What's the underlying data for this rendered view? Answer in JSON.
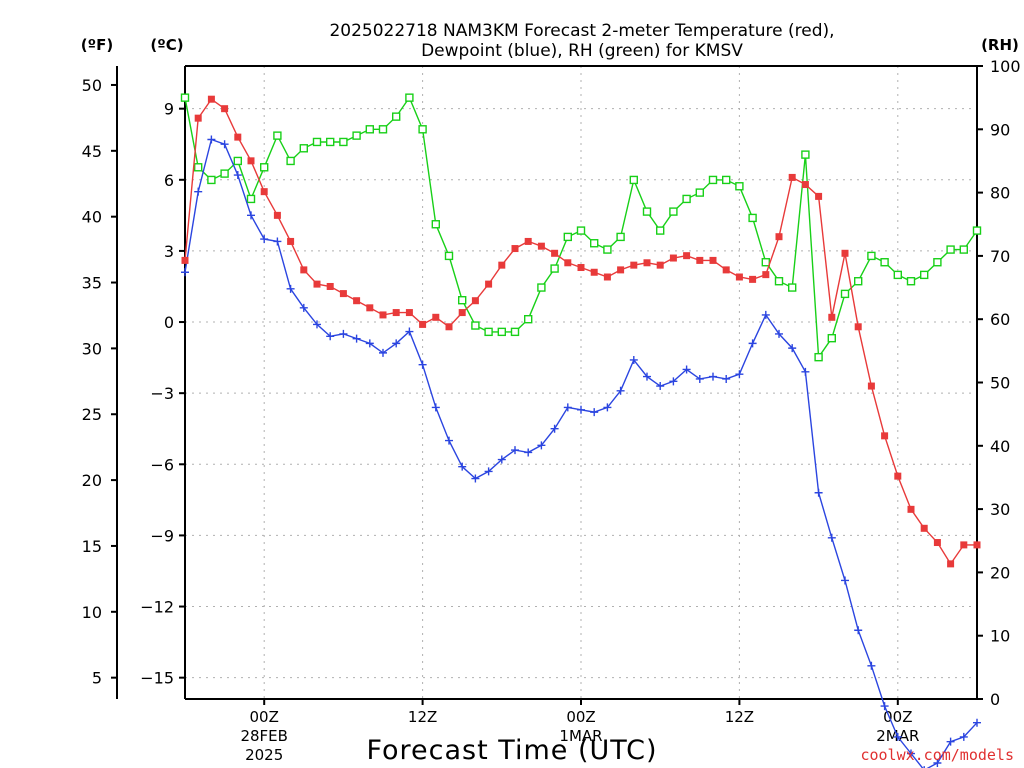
{
  "title": {
    "line1": "2025022718 NAM3KM Forecast 2-meter Temperature (red),",
    "line2": "Dewpoint (blue), RH (green) for KMSV"
  },
  "units": {
    "f": "(ºF)",
    "c": "(ºC)",
    "rh": "(RH)"
  },
  "credit": "coolwx.com/models",
  "colors": {
    "temperature": "#e83a3a",
    "dewpoint": "#2b45e0",
    "rh": "#18d018",
    "grid": "#b0b0b0"
  },
  "chart_data": {
    "type": "line",
    "title": "2025022718 NAM3KM Forecast 2-meter Temperature (red), Dewpoint (blue), RH (green) for KMSV",
    "xlabel": "Forecast Time (UTC)",
    "x_ticks": [
      {
        "h": 6,
        "l1": "00Z",
        "l2": "28FEB",
        "l3": "2025"
      },
      {
        "h": 18,
        "l1": "12Z",
        "l2": "",
        "l3": ""
      },
      {
        "h": 30,
        "l1": "00Z",
        "l2": "1MAR",
        "l3": ""
      },
      {
        "h": 42,
        "l1": "12Z",
        "l2": "",
        "l3": ""
      },
      {
        "h": 54,
        "l1": "00Z",
        "l2": "2MAR",
        "l3": ""
      }
    ],
    "x_hours": [
      0,
      1,
      2,
      3,
      4,
      5,
      6,
      7,
      8,
      9,
      10,
      11,
      12,
      13,
      14,
      15,
      16,
      17,
      18,
      19,
      20,
      21,
      22,
      23,
      24,
      25,
      26,
      27,
      28,
      29,
      30,
      31,
      32,
      33,
      34,
      35,
      36,
      37,
      38,
      39,
      40,
      41,
      42,
      43,
      44,
      45,
      46,
      47,
      48,
      49,
      50,
      51,
      52,
      53,
      54,
      55,
      56,
      57,
      58,
      59,
      60
    ],
    "xlim": [
      0,
      60
    ],
    "y_left_c": {
      "ticks": [
        9,
        6,
        3,
        0,
        -3,
        -6,
        -9,
        -12,
        -15
      ],
      "tick_labels": [
        "9",
        "6",
        "3",
        "0",
        "−3",
        "−6",
        "−9",
        "−12",
        "−15"
      ],
      "ylim": [
        -15.9,
        10.8
      ]
    },
    "y_left_f": {
      "ticks": [
        50,
        45,
        40,
        35,
        30,
        25,
        20,
        15,
        10,
        5
      ],
      "tick_labels": [
        "50",
        "45",
        "40",
        "35",
        "30",
        "25",
        "20",
        "15",
        "10",
        "5"
      ]
    },
    "y_right_rh": {
      "ticks": [
        100,
        90,
        80,
        70,
        60,
        50,
        40,
        30,
        20,
        10,
        0
      ],
      "tick_labels": [
        "100",
        "90",
        "80",
        "70",
        "60",
        "50",
        "40",
        "30",
        "20",
        "10",
        "0"
      ],
      "ylim": [
        0,
        100
      ]
    },
    "series": [
      {
        "name": "Temperature",
        "unit": "°C",
        "axis": "left",
        "marker": "filled-square",
        "values": [
          2.6,
          8.6,
          9.4,
          9.0,
          7.8,
          6.8,
          5.5,
          4.5,
          3.4,
          2.2,
          1.6,
          1.5,
          1.2,
          0.9,
          0.6,
          0.3,
          0.4,
          0.4,
          -0.1,
          0.2,
          -0.2,
          0.4,
          0.9,
          1.6,
          2.4,
          3.1,
          3.4,
          3.2,
          2.9,
          2.5,
          2.3,
          2.1,
          1.9,
          2.2,
          2.4,
          2.5,
          2.4,
          2.7,
          2.8,
          2.6,
          2.6,
          2.2,
          1.9,
          1.8,
          2.0,
          3.6,
          6.1,
          5.8,
          5.3,
          0.2,
          2.9,
          -0.2,
          -2.7,
          -4.8,
          -6.5,
          -7.9,
          -8.7,
          -9.3,
          -10.2,
          -9.4,
          -9.4
        ]
      },
      {
        "name": "Dewpoint",
        "unit": "°C",
        "axis": "left",
        "marker": "plus",
        "values": [
          2.1,
          5.5,
          7.7,
          7.5,
          6.2,
          4.5,
          3.5,
          3.4,
          1.4,
          0.6,
          -0.1,
          -0.6,
          -0.5,
          -0.7,
          -0.9,
          -1.3,
          -0.9,
          -0.4,
          -1.8,
          -3.6,
          -5.0,
          -6.1,
          -6.6,
          -6.3,
          -5.8,
          -5.4,
          -5.5,
          -5.2,
          -4.5,
          -3.6,
          -3.7,
          -3.8,
          -3.6,
          -2.9,
          -1.6,
          -2.3,
          -2.7,
          -2.5,
          -2.0,
          -2.4,
          -2.3,
          -2.4,
          -2.2,
          -0.9,
          0.3,
          -0.5,
          -1.1,
          -2.1,
          -7.2,
          -9.1,
          -10.9,
          -13.0,
          -14.5,
          -16.2,
          -17.5,
          -18.2,
          -18.9,
          -18.6,
          -17.7,
          -17.5,
          -16.9
        ]
      },
      {
        "name": "RH",
        "unit": "%",
        "axis": "right",
        "marker": "open-square",
        "values": [
          95,
          84,
          82,
          83,
          85,
          79,
          84,
          89,
          85,
          87,
          88,
          88,
          88,
          89,
          90,
          90,
          92,
          95,
          90,
          75,
          70,
          63,
          59,
          58,
          58,
          58,
          60,
          65,
          68,
          73,
          74,
          72,
          71,
          73,
          82,
          77,
          74,
          77,
          79,
          80,
          82,
          82,
          81,
          76,
          69,
          66,
          65,
          86,
          54,
          57,
          64,
          66,
          70,
          69,
          67,
          66,
          67,
          69,
          71,
          71,
          74
        ]
      }
    ]
  }
}
